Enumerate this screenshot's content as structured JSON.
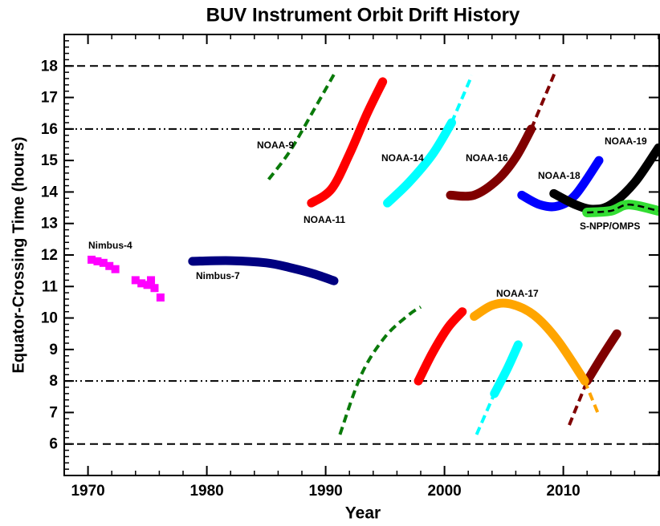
{
  "chart_data": {
    "type": "line",
    "title": "BUV Instrument Orbit Drift History",
    "xlabel": "Year",
    "ylabel": "Equator-Crossing Time (hours)",
    "xlim": [
      1968,
      2018
    ],
    "ylim": [
      5,
      19
    ],
    "xticks": [
      1970,
      1980,
      1990,
      2000,
      2010
    ],
    "yticks": [
      6,
      7,
      8,
      9,
      10,
      11,
      12,
      13,
      14,
      15,
      16,
      17,
      18
    ],
    "reference_lines": [
      {
        "value": 6,
        "style": "dashed"
      },
      {
        "value": 8,
        "style": "dash-dot-dot"
      },
      {
        "value": 16,
        "style": "dash-dot-dot"
      },
      {
        "value": 18,
        "style": "dashed"
      }
    ],
    "series": [
      {
        "name": "Nimbus-4",
        "color": "#ff00ff",
        "parts": [
          {
            "style": "points",
            "x": [
              1970.3,
              1970.8,
              1971.3,
              1971.8,
              1972.3,
              1974.0,
              1974.5,
              1975.0,
              1975.3,
              1975.6,
              1976.1
            ],
            "values": [
              11.85,
              11.8,
              11.75,
              11.65,
              11.55,
              11.2,
              11.1,
              11.05,
              11.2,
              10.95,
              10.65
            ]
          }
        ]
      },
      {
        "name": "Nimbus-7",
        "color": "#000080",
        "parts": [
          {
            "style": "thick",
            "x": [
              1978.8,
              1982,
              1985,
              1987,
              1989,
              1990.7
            ],
            "values": [
              11.8,
              11.82,
              11.75,
              11.6,
              11.4,
              11.18
            ]
          }
        ]
      },
      {
        "name": "NOAA-9",
        "color": "#0a7a0a",
        "parts": [
          {
            "style": "dashed",
            "x": [
              1985.2,
              1987,
              1989,
              1990.8
            ],
            "values": [
              14.4,
              15.3,
              16.6,
              17.8
            ]
          },
          {
            "style": "dashed",
            "x": [
              1991.2,
              1993,
              1995,
              1997,
              1998
            ],
            "values": [
              6.3,
              8.2,
              9.4,
              10.1,
              10.35
            ]
          }
        ]
      },
      {
        "name": "NOAA-11",
        "color": "#ff0000",
        "parts": [
          {
            "style": "thick",
            "x": [
              1988.8,
              1990.5,
              1992,
              1993.5,
              1994.8
            ],
            "values": [
              13.65,
              14.1,
              15.2,
              16.5,
              17.5
            ]
          },
          {
            "style": "thick",
            "x": [
              1997.8,
              1999,
              2000.3,
              2001.5
            ],
            "values": [
              8.0,
              8.9,
              9.7,
              10.2
            ]
          }
        ]
      },
      {
        "name": "NOAA-14",
        "color": "#00ffff",
        "parts": [
          {
            "style": "thick",
            "x": [
              1995.2,
              1997,
              1999,
              2000.6
            ],
            "values": [
              13.65,
              14.3,
              15.2,
              16.2
            ]
          },
          {
            "style": "dashed",
            "x": [
              2000.6,
              2002.3
            ],
            "values": [
              16.2,
              17.7
            ]
          },
          {
            "style": "dashed",
            "x": [
              2002.7,
              2004.2
            ],
            "values": [
              6.3,
              7.6
            ]
          },
          {
            "style": "thick",
            "x": [
              2004.2,
              2005.3,
              2006.2
            ],
            "values": [
              7.6,
              8.4,
              9.15
            ]
          }
        ]
      },
      {
        "name": "NOAA-16",
        "color": "#800000",
        "parts": [
          {
            "style": "thick",
            "x": [
              2000.5,
              2002.5,
              2004.5,
              2006,
              2007.3
            ],
            "values": [
              13.9,
              13.9,
              14.4,
              15.1,
              16.0
            ]
          },
          {
            "style": "dashed",
            "x": [
              2007.3,
              2009.3
            ],
            "values": [
              16.0,
              17.8
            ]
          },
          {
            "style": "dashed",
            "x": [
              2010.5,
              2012
            ],
            "values": [
              6.6,
              8.0
            ]
          },
          {
            "style": "thick",
            "x": [
              2012,
              2013.3,
              2014.5
            ],
            "values": [
              8.0,
              8.8,
              9.5
            ]
          }
        ]
      },
      {
        "name": "NOAA-17",
        "color": "#ffa500",
        "parts": [
          {
            "style": "thick",
            "x": [
              2002.5,
              2004,
              2005.5,
              2007.5,
              2009.5,
              2011.8
            ],
            "values": [
              10.05,
              10.4,
              10.45,
              10.1,
              9.3,
              8.0
            ]
          },
          {
            "style": "dashed",
            "x": [
              2011.8,
              2013
            ],
            "values": [
              8.0,
              6.9
            ]
          }
        ]
      },
      {
        "name": "NOAA-18",
        "color": "#0000ff",
        "parts": [
          {
            "style": "thick",
            "x": [
              2006.5,
              2008,
              2009.5,
              2011,
              2013
            ],
            "values": [
              13.9,
              13.6,
              13.55,
              13.9,
              15.0
            ]
          }
        ]
      },
      {
        "name": "NOAA-19",
        "color": "#000000",
        "parts": [
          {
            "style": "thick",
            "x": [
              2009.2,
              2011,
              2012.5,
              2014,
              2016,
              2018
            ],
            "values": [
              13.95,
              13.6,
              13.45,
              13.6,
              14.3,
              15.4
            ]
          }
        ]
      },
      {
        "name": "S-NPP/OMPS",
        "color": "#33dd33",
        "parts": [
          {
            "style": "band",
            "x": [
              2012,
              2014,
              2015.5,
              2018
            ],
            "values": [
              13.35,
              13.4,
              13.6,
              13.4
            ]
          }
        ]
      }
    ]
  }
}
